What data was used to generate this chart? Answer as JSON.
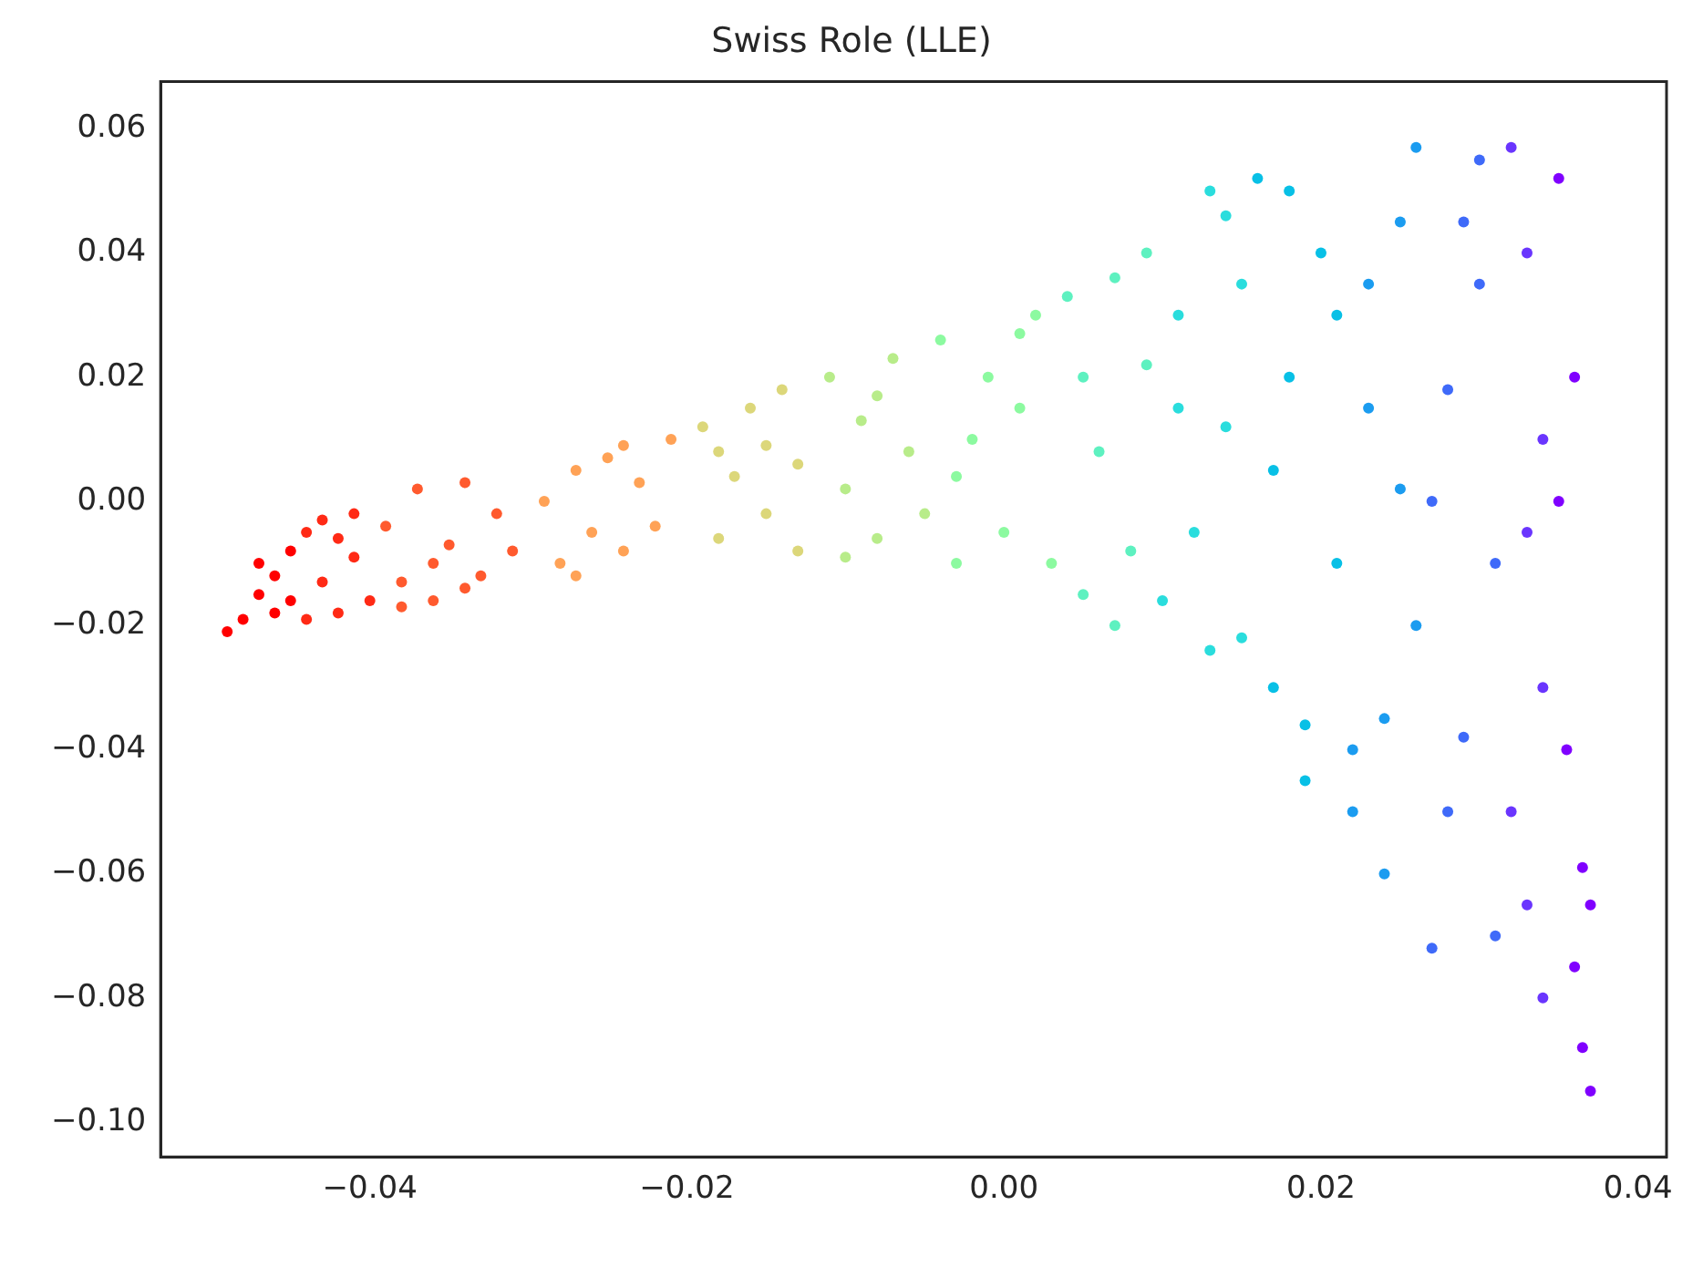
{
  "chart_data": {
    "type": "scatter",
    "title": "Swiss Role (LLE)",
    "marker": "circle",
    "legend": false,
    "grid": false,
    "xlim": [
      -0.0532,
      0.0418
    ],
    "ylim": [
      -0.1056,
      0.0676
    ],
    "xticks": [
      {
        "value": -0.04,
        "label": "−0.04"
      },
      {
        "value": -0.02,
        "label": "−0.02"
      },
      {
        "value": 0,
        "label": "0.00"
      },
      {
        "value": 0.02,
        "label": "0.02"
      },
      {
        "value": 0.04,
        "label": "0.04"
      }
    ],
    "yticks": [
      {
        "value": -0.1,
        "label": "−0.10"
      },
      {
        "value": -0.08,
        "label": "−0.08"
      },
      {
        "value": -0.06,
        "label": "−0.06"
      },
      {
        "value": -0.04,
        "label": "−0.04"
      },
      {
        "value": -0.02,
        "label": "−0.02"
      },
      {
        "value": 0,
        "label": "0.00"
      },
      {
        "value": 0.02,
        "label": "0.02"
      },
      {
        "value": 0.04,
        "label": "0.04"
      },
      {
        "value": 0.06,
        "label": "0.06"
      }
    ],
    "series": [
      {
        "color": "#ff0000",
        "x": [
          -0.049,
          -0.048,
          -0.047,
          -0.046,
          -0.046,
          -0.045,
          -0.047,
          -0.045
        ],
        "values": [
          -0.021,
          -0.019,
          -0.015,
          -0.012,
          -0.018,
          -0.008,
          -0.01,
          -0.016
        ]
      },
      {
        "color": "#ff2a15",
        "x": [
          -0.044,
          -0.043,
          -0.042,
          -0.041,
          -0.043,
          -0.04,
          -0.042,
          -0.041,
          -0.044
        ],
        "values": [
          -0.005,
          -0.013,
          -0.018,
          -0.009,
          -0.003,
          -0.016,
          -0.006,
          -0.002,
          -0.019
        ]
      },
      {
        "color": "#ff5a2e",
        "x": [
          -0.039,
          -0.038,
          -0.037,
          -0.036,
          -0.035,
          -0.034,
          -0.033,
          -0.032,
          -0.031,
          -0.036,
          -0.034,
          -0.038
        ],
        "values": [
          -0.004,
          -0.013,
          0.002,
          -0.016,
          -0.007,
          0.003,
          -0.012,
          -0.002,
          -0.008,
          -0.01,
          -0.014,
          -0.017
        ]
      },
      {
        "color": "#ffa256",
        "x": [
          -0.029,
          -0.028,
          -0.027,
          -0.026,
          -0.025,
          -0.024,
          -0.023,
          -0.022,
          -0.021,
          -0.027,
          -0.024
        ],
        "values": [
          0.0,
          -0.01,
          0.005,
          -0.005,
          0.007,
          -0.008,
          0.003,
          -0.004,
          0.01,
          -0.012,
          0.009
        ]
      },
      {
        "color": "#dcd77a",
        "x": [
          -0.019,
          -0.018,
          -0.017,
          -0.016,
          -0.015,
          -0.014,
          -0.013,
          -0.018,
          -0.015,
          -0.013
        ],
        "values": [
          0.012,
          -0.006,
          0.004,
          0.015,
          -0.002,
          0.018,
          0.006,
          0.008,
          0.009,
          -0.008
        ]
      },
      {
        "color": "#b8ec8a",
        "x": [
          -0.011,
          -0.01,
          -0.009,
          -0.008,
          -0.007,
          -0.006,
          -0.005,
          -0.01,
          -0.008
        ],
        "values": [
          0.02,
          0.002,
          0.013,
          -0.006,
          0.023,
          0.008,
          -0.002,
          -0.009,
          0.017
        ]
      },
      {
        "color": "#8cfaa0",
        "x": [
          -0.004,
          -0.003,
          -0.002,
          -0.001,
          0.0,
          0.001,
          0.002,
          0.003,
          -0.003,
          0.001
        ],
        "values": [
          0.026,
          -0.01,
          0.01,
          0.02,
          -0.005,
          0.015,
          0.03,
          -0.01,
          0.004,
          0.027
        ]
      },
      {
        "color": "#5ef1c0",
        "x": [
          0.004,
          0.005,
          0.006,
          0.007,
          0.008,
          0.009,
          0.005,
          0.007,
          0.009
        ],
        "values": [
          0.033,
          -0.015,
          0.008,
          0.036,
          -0.008,
          0.022,
          0.02,
          -0.02,
          0.04
        ]
      },
      {
        "color": "#2adddd",
        "x": [
          0.01,
          0.011,
          0.012,
          0.013,
          0.014,
          0.015,
          0.011,
          0.013,
          0.015,
          0.014
        ],
        "values": [
          -0.016,
          0.03,
          -0.005,
          0.05,
          0.012,
          -0.022,
          0.015,
          -0.024,
          0.035,
          0.046
        ]
      },
      {
        "color": "#08c0e6",
        "x": [
          0.016,
          0.017,
          0.018,
          0.019,
          0.02,
          0.021,
          0.017,
          0.019,
          0.021,
          0.018
        ],
        "values": [
          0.052,
          -0.03,
          0.02,
          -0.036,
          0.04,
          -0.01,
          0.005,
          -0.045,
          0.03,
          0.05
        ]
      },
      {
        "color": "#1b9cf0",
        "x": [
          0.022,
          0.023,
          0.024,
          0.025,
          0.026,
          0.023,
          0.025,
          0.026,
          0.024,
          0.022
        ],
        "values": [
          -0.05,
          0.015,
          -0.06,
          0.045,
          -0.02,
          0.035,
          0.002,
          0.057,
          -0.035,
          -0.04
        ]
      },
      {
        "color": "#3f6af9",
        "x": [
          0.027,
          0.028,
          0.029,
          0.03,
          0.031,
          0.028,
          0.03,
          0.027,
          0.031,
          0.029
        ],
        "values": [
          -0.072,
          0.018,
          -0.038,
          0.055,
          -0.01,
          -0.05,
          0.035,
          0.0,
          -0.07,
          0.045
        ]
      },
      {
        "color": "#6a35fe",
        "x": [
          0.032,
          0.033,
          0.034,
          0.033,
          0.034,
          0.032,
          0.034,
          0.033
        ],
        "values": [
          0.057,
          -0.065,
          0.01,
          0.04,
          -0.03,
          -0.05,
          -0.08,
          -0.005
        ]
      },
      {
        "color": "#8000ff",
        "x": [
          0.035,
          0.036,
          0.0365,
          0.037,
          0.0355,
          0.036,
          0.035,
          0.0365,
          0.037
        ],
        "values": [
          0.052,
          0.02,
          -0.059,
          -0.095,
          -0.04,
          -0.075,
          0.0,
          -0.088,
          -0.065
        ]
      }
    ]
  }
}
